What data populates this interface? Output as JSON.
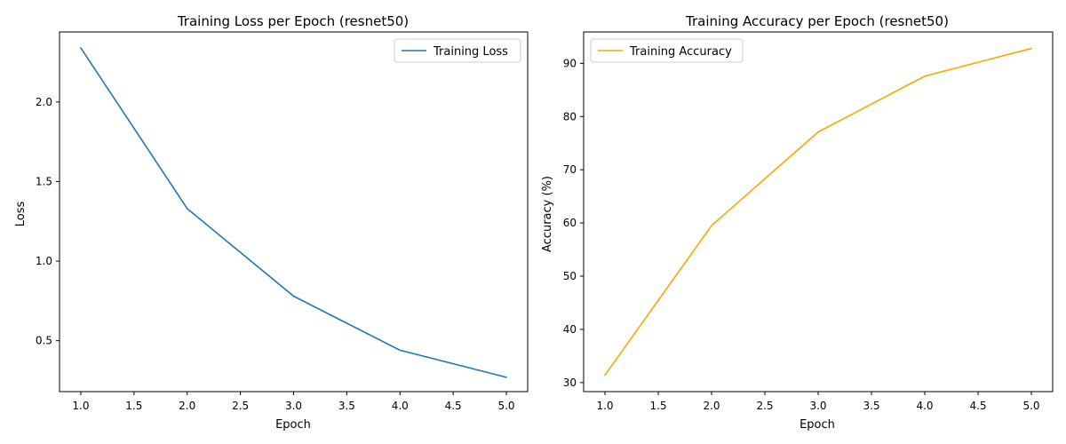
{
  "chart_data": [
    {
      "type": "line",
      "title": "Training Loss per Epoch (resnet50)",
      "xlabel": "Epoch",
      "ylabel": "Loss",
      "xlim": [
        0.8,
        5.2
      ],
      "ylim": [
        0.18,
        2.44
      ],
      "xticks": [
        1.0,
        1.5,
        2.0,
        2.5,
        3.0,
        3.5,
        4.0,
        4.5,
        5.0
      ],
      "yticks": [
        0.5,
        1.0,
        1.5,
        2.0
      ],
      "xtick_labels": [
        "1.0",
        "1.5",
        "2.0",
        "2.5",
        "3.0",
        "3.5",
        "4.0",
        "4.5",
        "5.0"
      ],
      "ytick_labels": [
        "0.5",
        "1.0",
        "1.5",
        "2.0"
      ],
      "grid": false,
      "legend": "upper right",
      "series": [
        {
          "name": "Training Loss",
          "color": "#1f77b4",
          "x": [
            1,
            2,
            3,
            4,
            5
          ],
          "y": [
            2.34,
            1.33,
            0.78,
            0.44,
            0.27
          ]
        }
      ]
    },
    {
      "type": "line",
      "title": "Training Accuracy per Epoch (resnet50)",
      "xlabel": "Epoch",
      "ylabel": "Accuracy (%)",
      "xlim": [
        0.8,
        5.2
      ],
      "ylim": [
        28.3,
        95.9
      ],
      "xticks": [
        1.0,
        1.5,
        2.0,
        2.5,
        3.0,
        3.5,
        4.0,
        4.5,
        5.0
      ],
      "yticks": [
        30,
        40,
        50,
        60,
        70,
        80,
        90
      ],
      "xtick_labels": [
        "1.0",
        "1.5",
        "2.0",
        "2.5",
        "3.0",
        "3.5",
        "4.0",
        "4.5",
        "5.0"
      ],
      "ytick_labels": [
        "30",
        "40",
        "50",
        "60",
        "70",
        "80",
        "90"
      ],
      "grid": false,
      "legend": "upper left",
      "series": [
        {
          "name": "Training Accuracy",
          "color": "#ffa500",
          "x": [
            1,
            2,
            3,
            4,
            5
          ],
          "y": [
            31.4,
            59.5,
            77.1,
            87.6,
            92.8
          ]
        }
      ]
    }
  ]
}
